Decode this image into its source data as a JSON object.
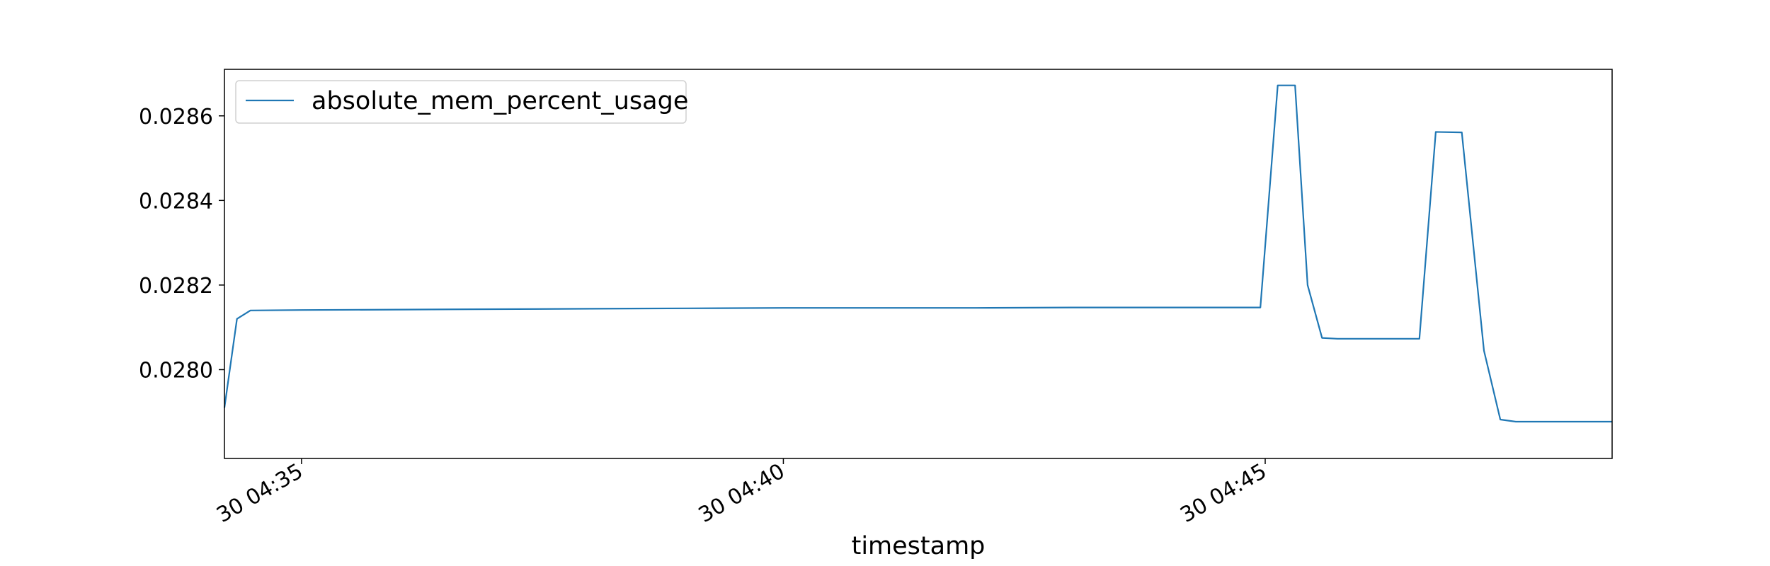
{
  "chart_data": {
    "type": "line",
    "xlabel": "timestamp",
    "ylabel": "",
    "x_ticks": [
      "30 04:35",
      "30 04:40",
      "30 04:45"
    ],
    "y_ticks": [
      "0.0280",
      "0.0282",
      "0.0284",
      "0.0286"
    ],
    "x_tick_values_min": [
      35,
      40,
      45
    ],
    "y_tick_values": [
      0.028,
      0.0282,
      0.0284,
      0.0286
    ],
    "xlim_min": [
      34.2,
      48.6
    ],
    "ylim": [
      0.02779,
      0.02871
    ],
    "grid": false,
    "legend_position": "upper-left",
    "series": [
      {
        "name": "absolute_mem_percent_usage",
        "color": "#1f77b4",
        "x_min": [
          34.2,
          34.33,
          34.47,
          35.0,
          36.0,
          37.0,
          38.0,
          39.0,
          40.0,
          41.0,
          42.0,
          43.0,
          44.0,
          44.95,
          45.13,
          45.31,
          45.44,
          45.59,
          45.75,
          46.0,
          46.6,
          46.77,
          47.04,
          47.27,
          47.44,
          47.6,
          48.0,
          48.6
        ],
        "values": [
          0.02791,
          0.02812,
          0.02814,
          0.028141,
          0.028142,
          0.028143,
          0.028144,
          0.028145,
          0.028146,
          0.028146,
          0.028146,
          0.028147,
          0.028147,
          0.028147,
          0.028672,
          0.028672,
          0.0282,
          0.028075,
          0.028073,
          0.028073,
          0.028073,
          0.028562,
          0.028561,
          0.028045,
          0.027882,
          0.027877,
          0.027877,
          0.027877
        ]
      }
    ]
  }
}
